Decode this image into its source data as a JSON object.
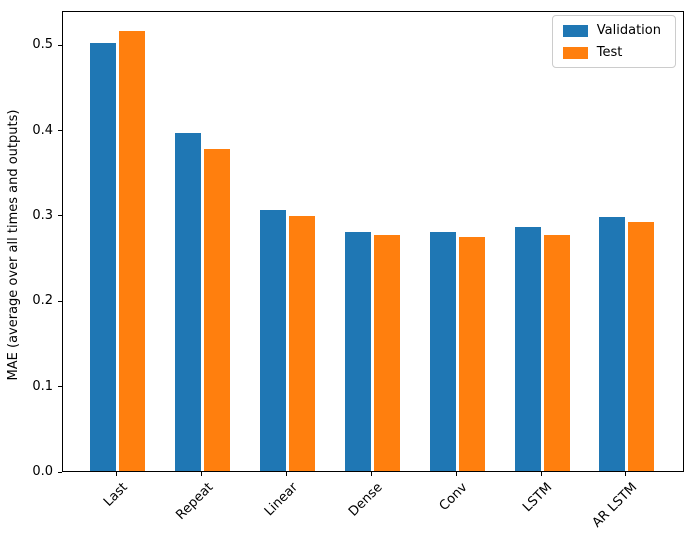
{
  "chart_data": {
    "type": "bar",
    "title": "",
    "xlabel": "",
    "ylabel": "MAE (average over all times and outputs)",
    "categories": [
      "Last",
      "Repeat",
      "Linear",
      "Dense",
      "Conv",
      "LSTM",
      "AR LSTM"
    ],
    "series": [
      {
        "name": "Validation",
        "color": "#1f77b4",
        "values": [
          0.501,
          0.396,
          0.306,
          0.28,
          0.28,
          0.286,
          0.298
        ]
      },
      {
        "name": "Test",
        "color": "#ff7f0e",
        "values": [
          0.516,
          0.377,
          0.299,
          0.277,
          0.274,
          0.277,
          0.292
        ]
      }
    ],
    "ylim": [
      0,
      0.54
    ],
    "yticks": [
      0.0,
      0.1,
      0.2,
      0.3,
      0.4,
      0.5
    ],
    "grid": false,
    "legend_position": "upper right",
    "x_tick_rotation": 45
  }
}
